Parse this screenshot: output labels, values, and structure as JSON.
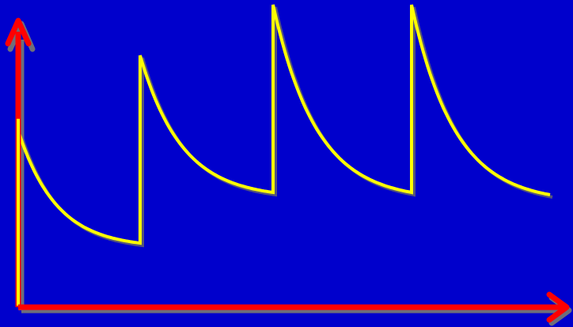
{
  "colors": {
    "background": "#0000CC",
    "axis": "#FF0000",
    "axis_shadow": "#6E6E7A",
    "curve": "#FFFF00",
    "curve_shadow": "#55557A"
  },
  "icons": {
    "x_axis_head": "arrow-right-icon",
    "y_axis_head": "arrow-up-icon"
  }
}
